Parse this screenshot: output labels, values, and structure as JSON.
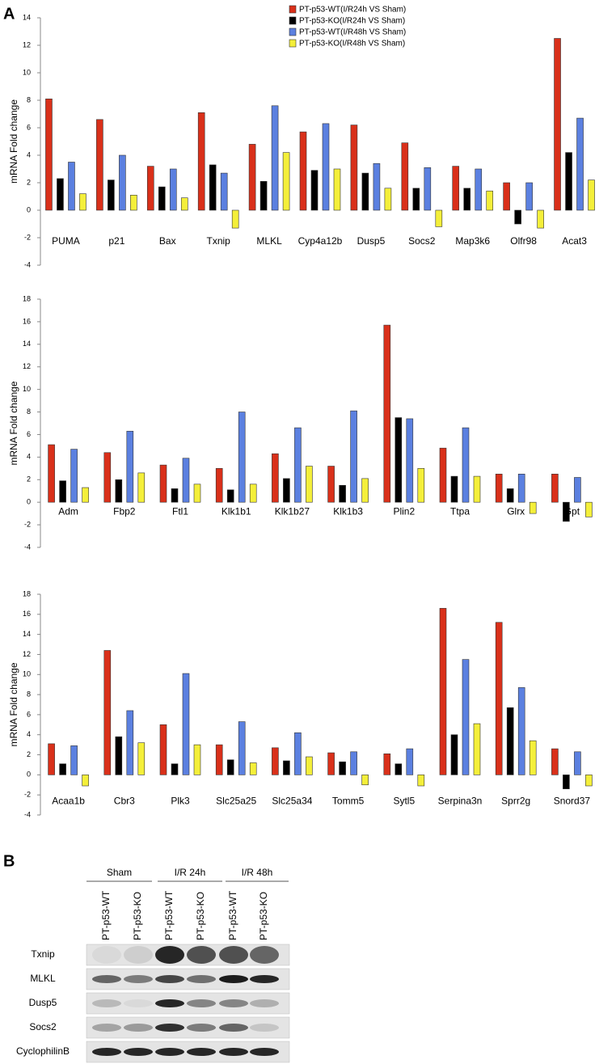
{
  "panels": {
    "a": "A",
    "b": "B"
  },
  "chart_data": [
    {
      "type": "bar",
      "ylabel": "mRNA Fold change",
      "categories": [
        "PUMA",
        "p21",
        "Bax",
        "Txnip",
        "MLKL",
        "Cyp4a12b",
        "Dusp5",
        "Socs2",
        "Map3k6",
        "Olfr98",
        "Acat3"
      ],
      "series": [
        {
          "name": "PT-p53-WT(I/R24h VS Sham)",
          "color": "#d9301a",
          "values": [
            8.1,
            6.6,
            3.2,
            7.1,
            4.8,
            5.7,
            6.2,
            4.9,
            3.2,
            2.0,
            12.5
          ]
        },
        {
          "name": "PT-p53-KO(I/R24h VS Sham)",
          "color": "#000000",
          "values": [
            2.3,
            2.2,
            1.7,
            3.3,
            2.1,
            2.9,
            2.7,
            1.6,
            1.6,
            -1.0,
            4.2
          ]
        },
        {
          "name": "PT-p53-WT(I/R48h VS Sham)",
          "color": "#5b80e0",
          "values": [
            3.5,
            4.0,
            3.0,
            2.7,
            7.6,
            6.3,
            3.4,
            3.1,
            3.0,
            2.0,
            6.7
          ]
        },
        {
          "name": "PT-p53-KO(I/R48h VS Sham)",
          "color": "#f4ef3a",
          "values": [
            1.2,
            1.1,
            0.9,
            -1.3,
            4.2,
            3.0,
            1.6,
            -1.2,
            1.4,
            -1.3,
            2.2
          ]
        }
      ],
      "ylim": [
        -4,
        14
      ],
      "yticks": [
        -4,
        -2,
        0,
        2,
        4,
        6,
        8,
        10,
        12,
        14
      ]
    },
    {
      "type": "bar",
      "ylabel": "mRNA Fold change",
      "categories": [
        "Adm",
        "Fbp2",
        "Ftl1",
        "Klk1b1",
        "Klk1b27",
        "Klk1b3",
        "Plin2",
        "Ttpa",
        "Glrx",
        "Gpt"
      ],
      "series": [
        {
          "color": "#d9301a",
          "values": [
            5.1,
            4.4,
            3.3,
            3.0,
            4.3,
            3.2,
            15.7,
            4.8,
            2.5,
            2.5
          ]
        },
        {
          "color": "#000000",
          "values": [
            1.9,
            2.0,
            1.2,
            1.1,
            2.1,
            1.5,
            7.5,
            2.3,
            1.2,
            -1.7
          ]
        },
        {
          "color": "#5b80e0",
          "values": [
            4.7,
            6.3,
            3.9,
            8.0,
            6.6,
            8.1,
            7.4,
            6.6,
            2.5,
            2.2
          ]
        },
        {
          "color": "#f4ef3a",
          "values": [
            1.3,
            2.6,
            1.6,
            1.6,
            3.2,
            2.1,
            3.0,
            2.3,
            -1.0,
            -1.3
          ]
        }
      ],
      "ylim": [
        -4,
        18
      ],
      "yticks": [
        -4,
        -2,
        0,
        2,
        4,
        6,
        8,
        10,
        12,
        14,
        16,
        18
      ]
    },
    {
      "type": "bar",
      "ylabel": "mRNA Fold change",
      "categories": [
        "Acaa1b",
        "Cbr3",
        "Plk3",
        "Slc25a25",
        "Slc25a34",
        "Tomm5",
        "Sytl5",
        "Serpina3n",
        "Sprr2g",
        "Snord37"
      ],
      "series": [
        {
          "color": "#d9301a",
          "values": [
            3.1,
            12.4,
            5.0,
            3.0,
            2.7,
            2.2,
            2.1,
            16.6,
            15.2,
            2.6
          ]
        },
        {
          "color": "#000000",
          "values": [
            1.1,
            3.8,
            1.1,
            1.5,
            1.4,
            1.3,
            1.1,
            4.0,
            6.7,
            -1.4
          ]
        },
        {
          "color": "#5b80e0",
          "values": [
            2.9,
            6.4,
            10.1,
            5.3,
            4.2,
            2.3,
            2.6,
            11.5,
            8.7,
            2.3
          ]
        },
        {
          "color": "#f4ef3a",
          "values": [
            -1.1,
            3.2,
            3.0,
            1.2,
            1.8,
            -1.0,
            -1.1,
            5.1,
            3.4,
            -1.1
          ]
        }
      ],
      "ylim": [
        -4,
        18
      ],
      "yticks": [
        -4,
        -2,
        0,
        2,
        4,
        6,
        8,
        10,
        12,
        14,
        16,
        18
      ]
    }
  ],
  "blot": {
    "groups": [
      "Sham",
      "I/R 24h",
      "I/R 48h"
    ],
    "lanes": [
      "PT-p53-WT",
      "PT-p53-KO",
      "PT-p53-WT",
      "PT-p53-KO",
      "PT-p53-WT",
      "PT-p53-KO"
    ],
    "rows": [
      "Txnip",
      "MLKL",
      "Dusp5",
      "Socs2",
      "CyclophilinB"
    ]
  }
}
